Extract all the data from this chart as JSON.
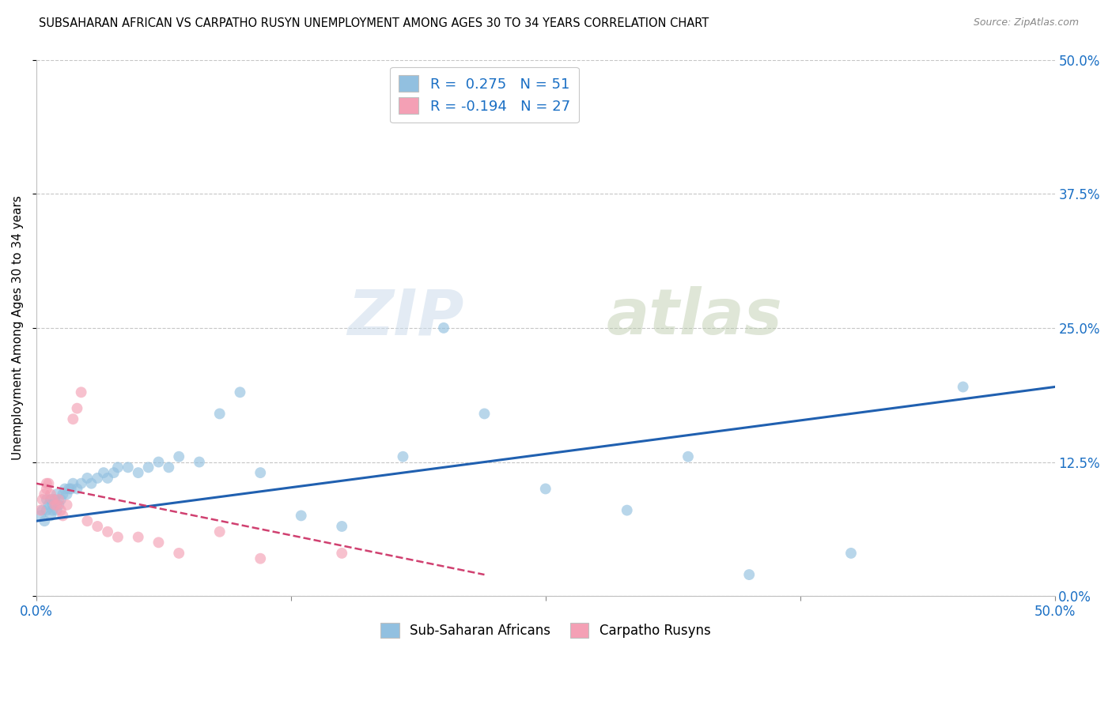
{
  "title": "SUBSAHARAN AFRICAN VS CARPATHO RUSYN UNEMPLOYMENT AMONG AGES 30 TO 34 YEARS CORRELATION CHART",
  "source": "Source: ZipAtlas.com",
  "ylabel_label": "Unemployment Among Ages 30 to 34 years",
  "legend_blue_r": "R =  0.275",
  "legend_blue_n": "N = 51",
  "legend_pink_r": "R = -0.194",
  "legend_pink_n": "N = 27",
  "legend_blue_label": "Sub-Saharan Africans",
  "legend_pink_label": "Carpatho Rusyns",
  "blue_color": "#92c0e0",
  "pink_color": "#f4a0b5",
  "blue_line_color": "#2060b0",
  "pink_line_color": "#d04070",
  "watermark_zip": "ZIP",
  "watermark_atlas": "atlas",
  "blue_scatter_x": [
    0.002,
    0.003,
    0.004,
    0.005,
    0.005,
    0.006,
    0.007,
    0.007,
    0.008,
    0.008,
    0.009,
    0.01,
    0.01,
    0.011,
    0.012,
    0.013,
    0.014,
    0.015,
    0.016,
    0.017,
    0.018,
    0.02,
    0.022,
    0.025,
    0.027,
    0.03,
    0.033,
    0.035,
    0.038,
    0.04,
    0.045,
    0.05,
    0.055,
    0.06,
    0.065,
    0.07,
    0.08,
    0.09,
    0.1,
    0.11,
    0.13,
    0.15,
    0.18,
    0.2,
    0.22,
    0.25,
    0.29,
    0.32,
    0.35,
    0.4,
    0.455
  ],
  "blue_scatter_y": [
    0.075,
    0.08,
    0.07,
    0.09,
    0.08,
    0.085,
    0.075,
    0.09,
    0.08,
    0.085,
    0.09,
    0.08,
    0.095,
    0.085,
    0.09,
    0.095,
    0.1,
    0.095,
    0.1,
    0.1,
    0.105,
    0.1,
    0.105,
    0.11,
    0.105,
    0.11,
    0.115,
    0.11,
    0.115,
    0.12,
    0.12,
    0.115,
    0.12,
    0.125,
    0.12,
    0.13,
    0.125,
    0.17,
    0.19,
    0.115,
    0.075,
    0.065,
    0.13,
    0.25,
    0.17,
    0.1,
    0.08,
    0.13,
    0.02,
    0.04,
    0.195
  ],
  "pink_scatter_x": [
    0.002,
    0.003,
    0.004,
    0.005,
    0.005,
    0.006,
    0.007,
    0.008,
    0.009,
    0.01,
    0.011,
    0.012,
    0.013,
    0.015,
    0.018,
    0.02,
    0.022,
    0.025,
    0.03,
    0.035,
    0.04,
    0.05,
    0.06,
    0.07,
    0.09,
    0.11,
    0.15
  ],
  "pink_scatter_y": [
    0.08,
    0.09,
    0.095,
    0.1,
    0.105,
    0.105,
    0.095,
    0.09,
    0.085,
    0.085,
    0.09,
    0.08,
    0.075,
    0.085,
    0.165,
    0.175,
    0.19,
    0.07,
    0.065,
    0.06,
    0.055,
    0.055,
    0.05,
    0.04,
    0.06,
    0.035,
    0.04
  ],
  "xlim": [
    0.0,
    0.5
  ],
  "ylim": [
    0.0,
    0.5
  ],
  "x_ticks": [
    0.0,
    0.125,
    0.25,
    0.375,
    0.5
  ],
  "y_ticks": [
    0.0,
    0.125,
    0.25,
    0.375,
    0.5
  ],
  "blue_trend_x0": 0.0,
  "blue_trend_x1": 0.5,
  "blue_trend_y0": 0.07,
  "blue_trend_y1": 0.195,
  "pink_trend_x0": 0.0,
  "pink_trend_x1": 0.22,
  "pink_trend_y0": 0.105,
  "pink_trend_y1": 0.02
}
